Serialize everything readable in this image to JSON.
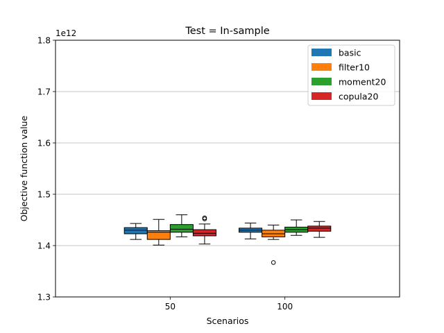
{
  "chart_data": {
    "type": "box",
    "title": "Test = In-sample",
    "xlabel": "Scenarios",
    "ylabel": "Objective function value",
    "y_offset_label": "1e12",
    "ylim": [
      1.3,
      1.8
    ],
    "yticks": [
      1.3,
      1.4,
      1.5,
      1.6,
      1.7,
      1.8
    ],
    "ytick_labels": [
      "1.3",
      "1.4",
      "1.5",
      "1.6",
      "1.7",
      "1.8"
    ],
    "grid_y": true,
    "legend_position": "top-right",
    "categories": [
      "50",
      "100"
    ],
    "series": [
      {
        "name": "basic",
        "color": "#1f77b4",
        "boxes": [
          {
            "whislo": 1.412,
            "q1": 1.423,
            "median": 1.43,
            "q3": 1.435,
            "whishi": 1.443,
            "fliers": []
          },
          {
            "whislo": 1.413,
            "q1": 1.426,
            "median": 1.43,
            "q3": 1.434,
            "whishi": 1.444,
            "fliers": []
          }
        ]
      },
      {
        "name": "filter10",
        "color": "#ff7f0e",
        "boxes": [
          {
            "whislo": 1.401,
            "q1": 1.412,
            "median": 1.426,
            "q3": 1.429,
            "whishi": 1.451,
            "fliers": []
          },
          {
            "whislo": 1.412,
            "q1": 1.417,
            "median": 1.423,
            "q3": 1.43,
            "whishi": 1.44,
            "fliers": [
              1.367
            ]
          }
        ]
      },
      {
        "name": "moment20",
        "color": "#2ca02c",
        "boxes": [
          {
            "whislo": 1.417,
            "q1": 1.426,
            "median": 1.432,
            "q3": 1.441,
            "whishi": 1.46,
            "fliers": []
          },
          {
            "whislo": 1.42,
            "q1": 1.426,
            "median": 1.431,
            "q3": 1.436,
            "whishi": 1.45,
            "fliers": []
          }
        ]
      },
      {
        "name": "copula20",
        "color": "#d62728",
        "boxes": [
          {
            "whislo": 1.403,
            "q1": 1.419,
            "median": 1.424,
            "q3": 1.431,
            "whishi": 1.442,
            "fliers": [
              1.452,
              1.454
            ]
          },
          {
            "whislo": 1.416,
            "q1": 1.428,
            "median": 1.434,
            "q3": 1.438,
            "whishi": 1.447,
            "fliers": []
          }
        ]
      }
    ]
  }
}
